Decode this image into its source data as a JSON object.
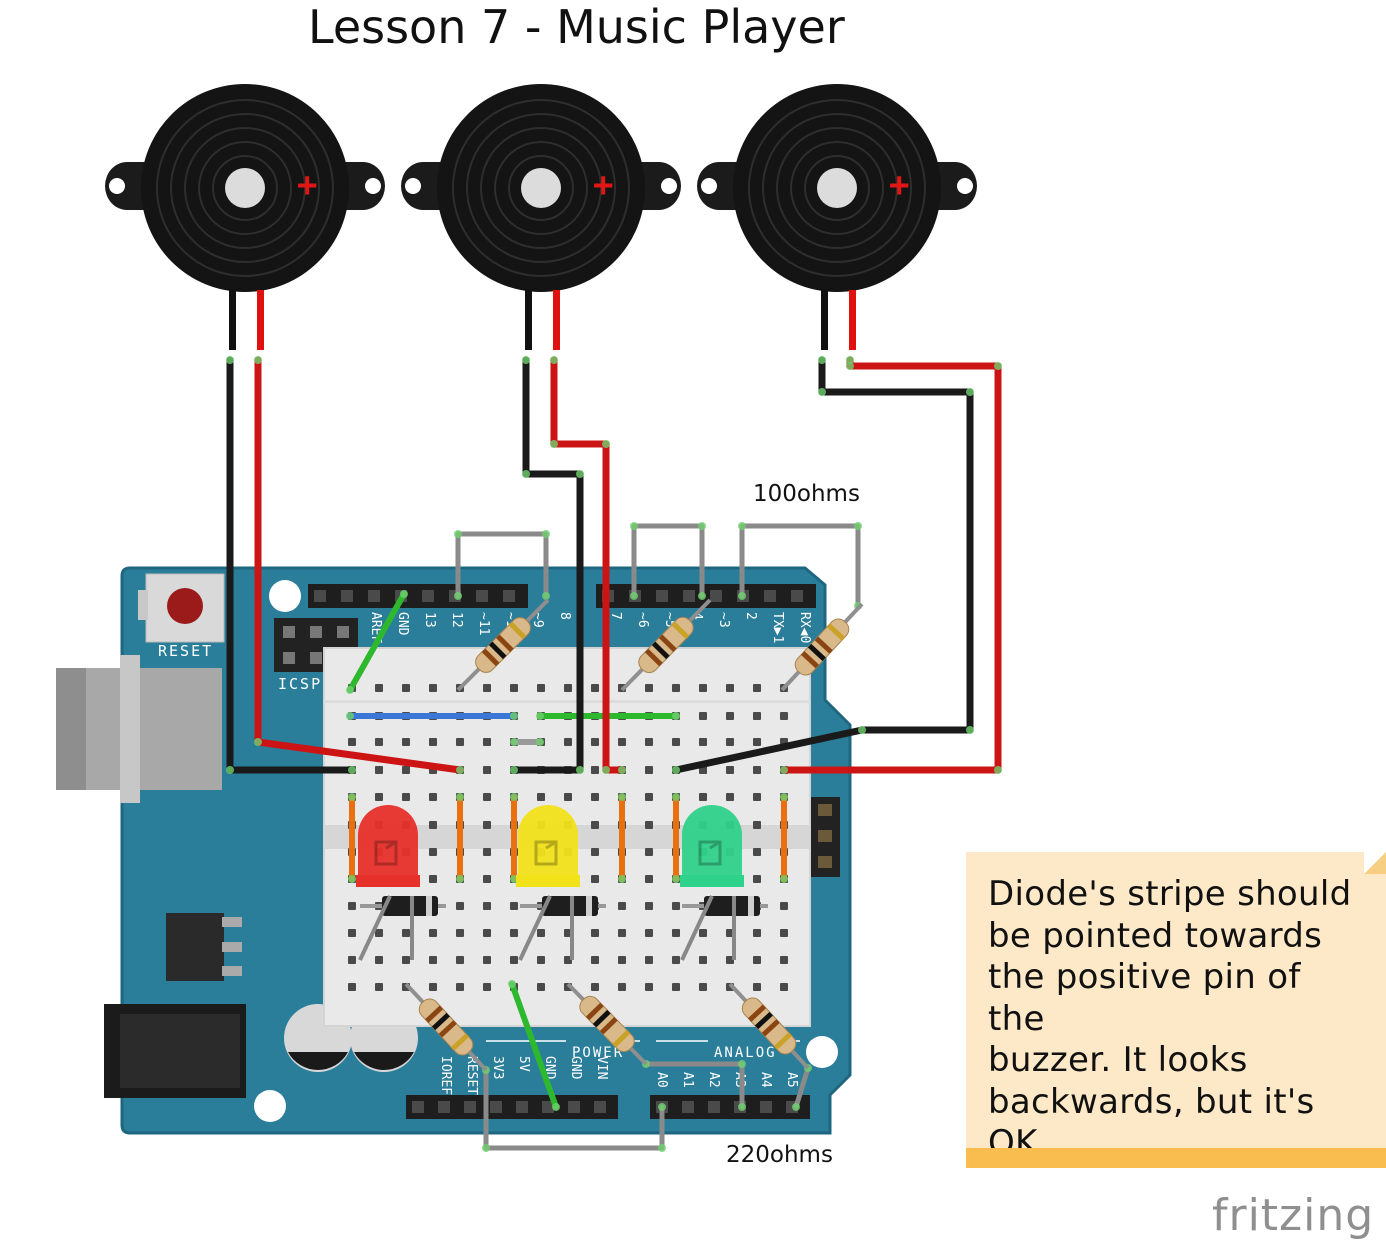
{
  "title": "Lesson 7 - Music Player",
  "note": {
    "lines": [
      "Diode's stripe should",
      "be pointed towards",
      "the positive pin of the",
      "buzzer.  It looks",
      "backwards, but it's OK."
    ]
  },
  "labels": {
    "top_resistors": "100ohms",
    "bottom_resistors": "220ohms",
    "reset": "RESET",
    "icsp": "ICSP",
    "power": "POWER",
    "analog": "ANALOG",
    "logo": "fritzing",
    "buzzer_plus": "+"
  },
  "header_pins": {
    "digital_left": [
      "AREF",
      "GND",
      "13",
      "12",
      "~11",
      "~10",
      "~9",
      "8"
    ],
    "digital_right": [
      "7",
      "~6",
      "~5",
      "4",
      "~3",
      "2",
      "TX▶1",
      "RX◀0"
    ],
    "power": [
      "IOREF",
      "RESET",
      "3V3",
      "5V",
      "GND",
      "GND",
      "VIN"
    ],
    "analog": [
      "A0",
      "A1",
      "A2",
      "A3",
      "A4",
      "A5"
    ]
  },
  "colors": {
    "arduino": "#2a7e9a",
    "arduino_edge": "#1f6681",
    "breadboard": "#e8e8e8",
    "wire_red": "#cc1414",
    "wire_black": "#1a1a1a",
    "wire_gray": "#8a8a8a",
    "wire_green": "#2eb82e",
    "wire_blue": "#3b78d6",
    "wire_orange": "#e8700e",
    "led_red": "#e8302a",
    "led_yellow": "#f2e21a",
    "led_green": "#2fd28a",
    "note_bg": "#fde9c7",
    "note_bar": "#f8bd4e"
  }
}
